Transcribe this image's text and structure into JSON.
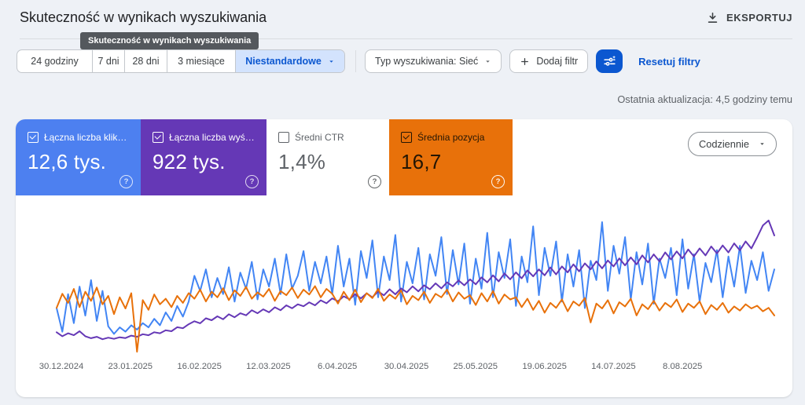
{
  "header": {
    "title": "Skuteczność w wynikach wyszukiwania",
    "export_label": "EKSPORTUJ"
  },
  "tooltip": {
    "text": "Skuteczność w wynikach wyszukiwania"
  },
  "filters": {
    "date_ranges": [
      "24 godziny",
      "7 dni",
      "28 dni",
      "3 miesiące"
    ],
    "custom_range_label": "Niestandardowe",
    "search_type_label": "Typ wyszukiwania: Sieć",
    "add_filter_label": "Dodaj filtr",
    "reset_label": "Resetuj filtry"
  },
  "status": {
    "last_update": "Ostatnia aktualizacja: 4,5 godziny temu"
  },
  "metrics": {
    "granularity_label": "Codziennie",
    "cards": [
      {
        "label": "Łączna liczba klik…",
        "value": "12,6 tys.",
        "checked": true,
        "color": "#4d80f0"
      },
      {
        "label": "Łączna liczba wyś…",
        "value": "922 tys.",
        "checked": true,
        "color": "#6538b6"
      },
      {
        "label": "Średni CTR",
        "value": "1,4%",
        "checked": false,
        "color": "#ffffff"
      },
      {
        "label": "Średnia pozycja",
        "value": "16,7",
        "checked": true,
        "color": "#e8710a"
      }
    ]
  },
  "chart_data": {
    "type": "line",
    "grid": false,
    "legend_position": "metric-cards-above",
    "x_tick_labels": [
      "30.12.2024",
      "23.01.2025",
      "16.02.2025",
      "12.03.2025",
      "6.04.2025",
      "30.04.2025",
      "25.05.2025",
      "19.06.2025",
      "14.07.2025",
      "8.08.2025"
    ],
    "series": [
      {
        "id": "clicks",
        "name": "Łączna liczba kliknięć",
        "total": "12,6 tys.",
        "color": "#4285f4",
        "axis_min": 0,
        "axis_max": 130,
        "inverted": false,
        "values": [
          42,
          20,
          55,
          28,
          62,
          35,
          68,
          30,
          58,
          25,
          18,
          24,
          20,
          26,
          22,
          28,
          24,
          32,
          26,
          38,
          30,
          44,
          34,
          48,
          72,
          58,
          78,
          52,
          70,
          55,
          80,
          48,
          75,
          60,
          85,
          50,
          78,
          62,
          88,
          55,
          92,
          60,
          72,
          95,
          58,
          85,
          65,
          90,
          55,
          100,
          62,
          88,
          45,
          95,
          70,
          105,
          52,
          90,
          68,
          110,
          48,
          85,
          65,
          98,
          50,
          92,
          72,
          108,
          55,
          96,
          64,
          102,
          46,
          88,
          60,
          112,
          52,
          94,
          70,
          106,
          44,
          90,
          66,
          118,
          54,
          98,
          72,
          104,
          48,
          92,
          62,
          96,
          42,
          86,
          68,
          122,
          58,
          100,
          74,
          108,
          50,
          94,
          64,
          102,
          46,
          88,
          70,
          98,
          54,
          106,
          60,
          92,
          48,
          84,
          66,
          96,
          52,
          90,
          62,
          100,
          56,
          86,
          68,
          94,
          58,
          78
        ]
      },
      {
        "id": "impressions",
        "name": "Łączna liczba wyświetleń",
        "total": "922 tys.",
        "color": "#6538b6",
        "axis_min": 0,
        "axis_max": 7000,
        "inverted": false,
        "values": [
          1050,
          850,
          1000,
          900,
          1100,
          850,
          750,
          820,
          700,
          780,
          720,
          800,
          760,
          880,
          820,
          950,
          900,
          1050,
          1000,
          1150,
          1100,
          1300,
          1250,
          1450,
          1600,
          1500,
          1750,
          1650,
          1850,
          1700,
          1950,
          1800,
          2000,
          1900,
          2150,
          2000,
          2200,
          2050,
          2300,
          2150,
          2400,
          2250,
          2450,
          2350,
          2550,
          2400,
          2650,
          2500,
          2750,
          2600,
          2850,
          2700,
          2950,
          2750,
          3000,
          2800,
          3100,
          2900,
          3200,
          2950,
          3250,
          3050,
          3350,
          3100,
          3400,
          3200,
          3500,
          3250,
          3550,
          3350,
          3650,
          3400,
          3700,
          3450,
          3800,
          3550,
          3900,
          3600,
          4000,
          3700,
          4050,
          3750,
          4150,
          3850,
          4200,
          3900,
          4300,
          3950,
          4350,
          4050,
          4450,
          4100,
          4500,
          4200,
          4600,
          4250,
          4650,
          4350,
          4750,
          4400,
          4800,
          4450,
          4900,
          4550,
          4950,
          4600,
          5050,
          4700,
          5100,
          4750,
          5200,
          4850,
          5250,
          4900,
          5350,
          5000,
          5400,
          5050,
          5500,
          5150,
          5600,
          5250,
          5800,
          6400,
          6650,
          5900
        ]
      },
      {
        "id": "position",
        "name": "Średnia pozycja",
        "average": "16,7",
        "color": "#e8710a",
        "axis_min": 4,
        "axis_max": 24,
        "inverted": true,
        "values": [
          17.5,
          15.5,
          16.8,
          14.8,
          17.4,
          15.2,
          16.5,
          14.6,
          17.0,
          15.8,
          18.4,
          16.0,
          17.6,
          15.4,
          23.8,
          16.4,
          17.8,
          15.6,
          17.0,
          16.2,
          17.4,
          15.8,
          16.8,
          15.4,
          16.2,
          14.9,
          16.6,
          15.2,
          16.0,
          14.7,
          16.4,
          15.0,
          15.8,
          14.5,
          16.2,
          15.3,
          15.9,
          14.8,
          16.5,
          15.1,
          15.7,
          14.6,
          16.1,
          14.9,
          15.6,
          14.4,
          16.0,
          14.8,
          15.5,
          16.9,
          15.2,
          16.4,
          14.9,
          16.7,
          15.4,
          16.1,
          14.8,
          16.5,
          15.6,
          16.2,
          15.0,
          17.0,
          15.8,
          16.4,
          15.2,
          16.8,
          15.5,
          16.0,
          14.9,
          16.6,
          15.3,
          16.2,
          15.7,
          17.1,
          15.4,
          16.6,
          15.1,
          16.9,
          15.6,
          16.3,
          16.0,
          17.4,
          16.2,
          17.8,
          16.5,
          18.2,
          16.8,
          17.5,
          16.3,
          18.0,
          16.6,
          17.2,
          16.1,
          19.6,
          16.9,
          17.6,
          16.4,
          18.3,
          16.7,
          17.3,
          16.2,
          18.6,
          17.0,
          17.7,
          16.5,
          17.9,
          16.8,
          17.4,
          16.3,
          18.1,
          16.9,
          17.5,
          16.6,
          18.4,
          17.1,
          17.8,
          16.8,
          18.2,
          17.3,
          17.9,
          17.0,
          17.6,
          17.2,
          18.0,
          17.5,
          18.6
        ]
      }
    ]
  }
}
